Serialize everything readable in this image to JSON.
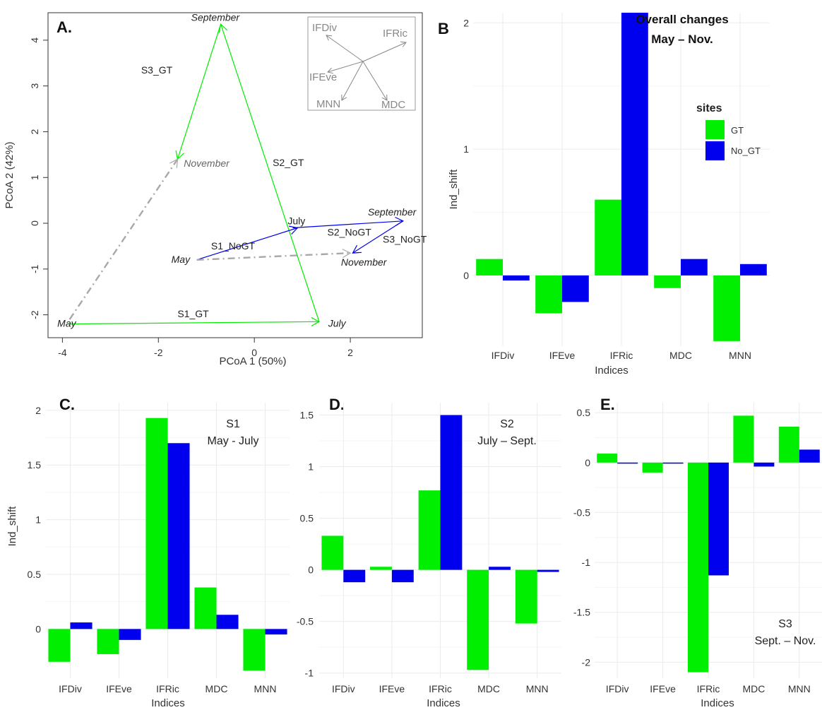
{
  "legend": {
    "title": "sites",
    "items": [
      {
        "label": "GT",
        "color": "#00ee00"
      },
      {
        "label": "No_GT",
        "color": "#0000ee"
      }
    ]
  },
  "chart_data": [
    {
      "panel": "A.",
      "type": "scatter",
      "xlabel": "PCoA 1 (50%)",
      "ylabel": "PCoA 2 (42%)",
      "xlim": [
        -4.3,
        3.5
      ],
      "ylim": [
        -2.5,
        4.6
      ],
      "xticks": [
        -4,
        -2,
        0,
        2
      ],
      "yticks": [
        -2,
        -1,
        0,
        1,
        2,
        3,
        4
      ],
      "points": [
        {
          "label": "May",
          "x": -3.9,
          "y": -2.2,
          "italic": true
        },
        {
          "label": "July",
          "x": 1.45,
          "y": -2.2,
          "italic": true
        },
        {
          "label": "September",
          "x": -0.7,
          "y": 4.3,
          "italic": true
        },
        {
          "label": "November",
          "x": -1.5,
          "y": 1.3,
          "italic": true
        },
        {
          "label": "May",
          "x": -1.2,
          "y": -0.8,
          "italic": true
        },
        {
          "label": "July",
          "x": 0.9,
          "y": -0.15,
          "italic": false
        },
        {
          "label": "September",
          "x": 3.1,
          "y": 0.05,
          "italic": true
        },
        {
          "label": "November",
          "x": 2.1,
          "y": -0.65,
          "italic": true
        }
      ],
      "segments": [
        {
          "label": "S1_GT",
          "from": [
            -3.9,
            -2.2
          ],
          "to": [
            1.35,
            -2.15
          ],
          "color": "#00ee00",
          "style": "solid"
        },
        {
          "label": "S2_GT",
          "from": [
            1.35,
            -2.15
          ],
          "to": [
            -0.7,
            4.35
          ],
          "color": "#00ee00",
          "style": "solid"
        },
        {
          "label": "S3_GT",
          "from": [
            -0.7,
            4.35
          ],
          "to": [
            -1.6,
            1.4
          ],
          "color": "#00ee00",
          "style": "solid"
        },
        {
          "label": "",
          "from": [
            -3.85,
            -2.1
          ],
          "to": [
            -1.6,
            1.4
          ],
          "color": "#a8a8a8",
          "style": "dashdot"
        },
        {
          "label": "S1_NoGT",
          "from": [
            -1.2,
            -0.8
          ],
          "to": [
            0.9,
            -0.1
          ],
          "color": "#0000ee",
          "style": "solid"
        },
        {
          "label": "S2_NoGT",
          "from": [
            0.8,
            -0.1
          ],
          "to": [
            3.1,
            0.05
          ],
          "color": "#0000ee",
          "style": "solid"
        },
        {
          "label": "S3_NoGT",
          "from": [
            3.1,
            0.05
          ],
          "to": [
            2.05,
            -0.65
          ],
          "color": "#0000ee",
          "style": "solid"
        },
        {
          "label": "",
          "from": [
            -1.2,
            -0.8
          ],
          "to": [
            2.0,
            -0.65
          ],
          "color": "#a8a8a8",
          "style": "dashdot"
        }
      ],
      "inset_loadings": [
        "IFDiv",
        "IFRic",
        "IFEve",
        "MNN",
        "MDC"
      ]
    },
    {
      "panel": "B",
      "type": "bar",
      "annotation": [
        "Overall changes",
        "May – Nov."
      ],
      "xlabel": "Indices",
      "ylabel": "Ind_shift",
      "categories": [
        "IFDiv",
        "IFEve",
        "IFRic",
        "MDC",
        "MNN"
      ],
      "series": [
        {
          "name": "GT",
          "values": [
            0.13,
            -0.3,
            0.6,
            -0.1,
            -0.52
          ]
        },
        {
          "name": "No_GT",
          "values": [
            -0.04,
            -0.21,
            2.08,
            0.13,
            0.09
          ]
        }
      ],
      "ylim": [
        -0.56,
        2.08
      ],
      "yticks": [
        0,
        1,
        2
      ]
    },
    {
      "panel": "C.",
      "type": "bar",
      "annotation": [
        "S1",
        "May - July"
      ],
      "xlabel": "Indices",
      "ylabel": "Ind_shift",
      "categories": [
        "IFDiv",
        "IFEve",
        "IFRic",
        "MDC",
        "MNN"
      ],
      "series": [
        {
          "name": "GT",
          "values": [
            -0.3,
            -0.23,
            1.93,
            0.38,
            -0.38
          ]
        },
        {
          "name": "No_GT",
          "values": [
            0.06,
            -0.1,
            1.7,
            0.13,
            -0.05
          ]
        }
      ],
      "ylim": [
        -0.45,
        2.07
      ],
      "yticks": [
        0,
        0.5,
        1,
        1.5,
        2
      ]
    },
    {
      "panel": "D.",
      "type": "bar",
      "annotation": [
        "S2",
        "July – Sept."
      ],
      "xlabel": "Indices",
      "ylabel": "",
      "categories": [
        "IFDiv",
        "IFEve",
        "IFRic",
        "MDC",
        "MNN"
      ],
      "series": [
        {
          "name": "GT",
          "values": [
            0.33,
            0.03,
            0.77,
            -0.97,
            -0.52
          ]
        },
        {
          "name": "No_GT",
          "values": [
            -0.12,
            -0.12,
            1.5,
            0.03,
            -0.02
          ]
        }
      ],
      "ylim": [
        -1.05,
        1.62
      ],
      "yticks": [
        -1,
        -0.5,
        0,
        0.5,
        1,
        1.5
      ]
    },
    {
      "panel": "E.",
      "type": "bar",
      "annotation": [
        "S3",
        "Sept. – Nov."
      ],
      "xlabel": "Indices",
      "ylabel": "",
      "categories": [
        "IFDiv",
        "IFEve",
        "IFRic",
        "MDC",
        "MNN"
      ],
      "series": [
        {
          "name": "GT",
          "values": [
            0.09,
            -0.1,
            -2.1,
            0.47,
            0.36
          ]
        },
        {
          "name": "No_GT",
          "values": [
            -0.01,
            0,
            -1.13,
            -0.04,
            0.13
          ]
        }
      ],
      "ylim": [
        -2.16,
        0.6
      ],
      "yticks": [
        -2,
        -1.5,
        -1,
        -0.5,
        0,
        0.5
      ]
    }
  ]
}
